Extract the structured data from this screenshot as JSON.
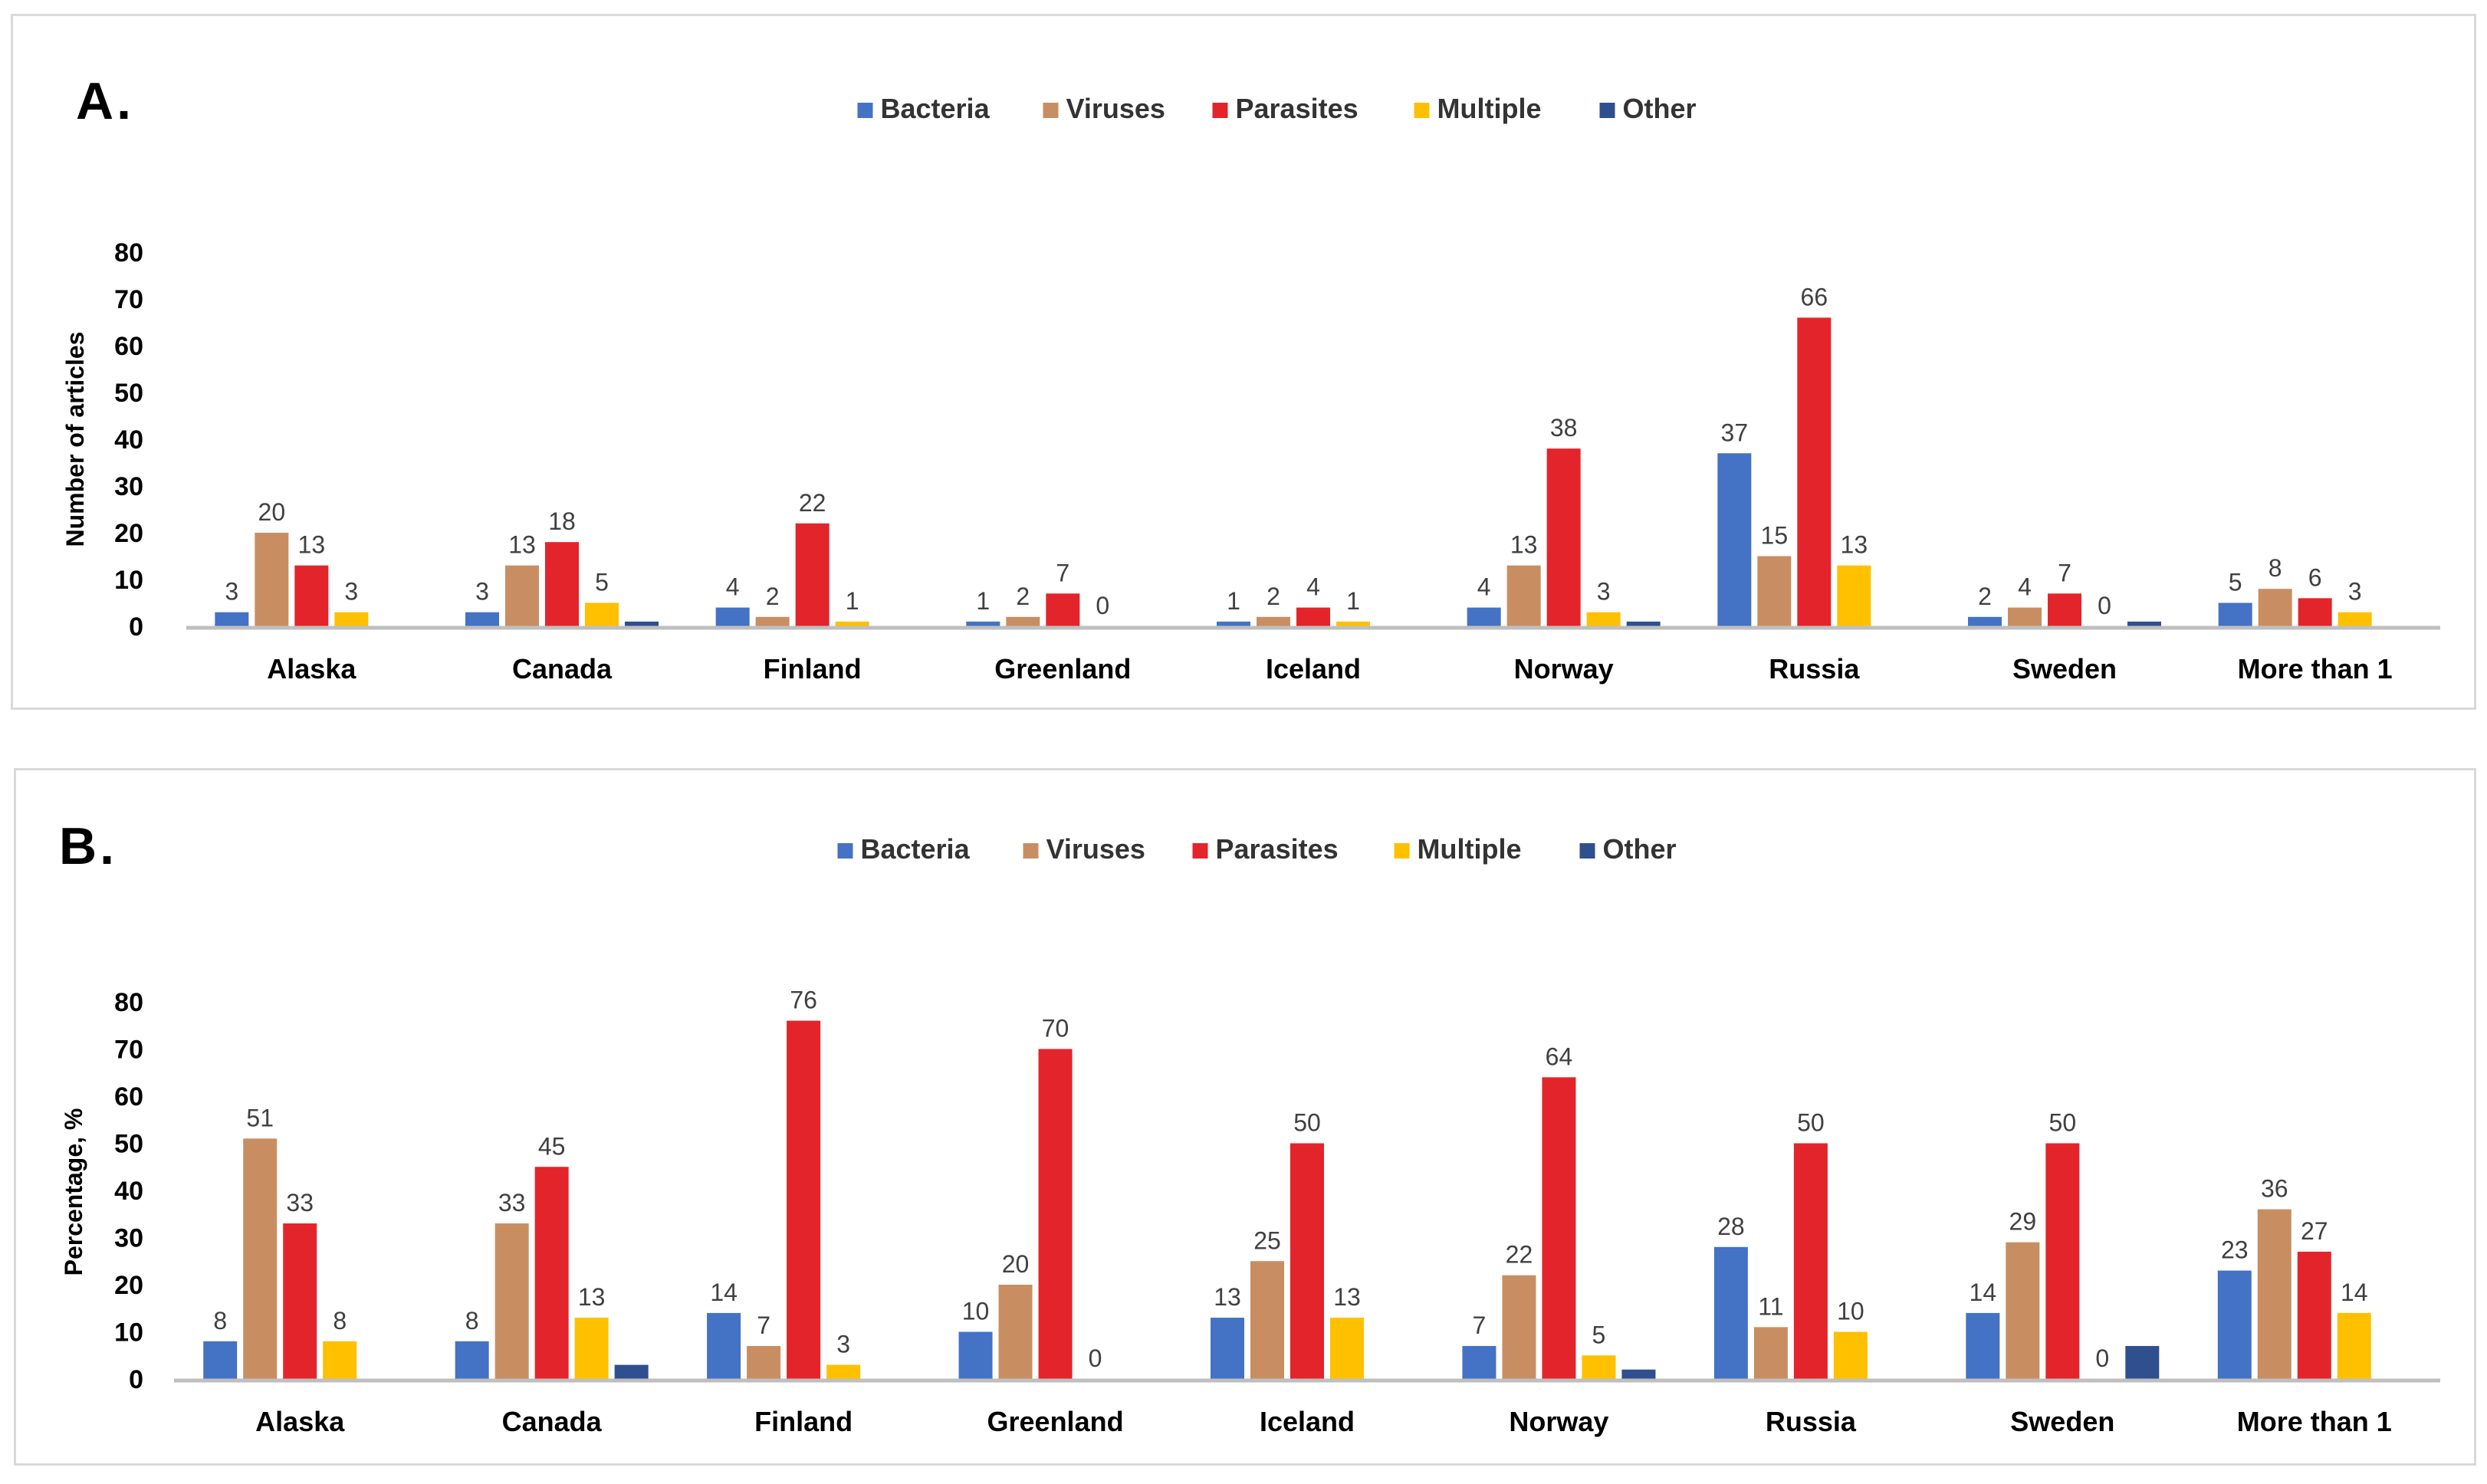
{
  "panels": [
    {
      "letter": "A."
    },
    {
      "letter": "B."
    }
  ],
  "colors": {
    "Bacteria": "#4472c4",
    "Viruses": "#c88e62",
    "Parasites": "#e3242b",
    "Multiple": "#ffc000",
    "Other": "#2f4f8f",
    "axis": "#bfbfbf"
  },
  "chart_data": [
    {
      "type": "bar",
      "title": "A.",
      "xlabel": "",
      "ylabel": "Number of articles",
      "ylim": [
        0,
        80
      ],
      "yticks": [
        0,
        10,
        20,
        30,
        40,
        50,
        60,
        70,
        80
      ],
      "legend_position": "top-center",
      "grid": false,
      "categories": [
        "Alaska",
        "Canada",
        "Finland",
        "Greenland",
        "Iceland",
        "Norway",
        "Russia",
        "Sweden",
        "More than 1"
      ],
      "series": [
        {
          "name": "Bacteria",
          "values": [
            3,
            3,
            4,
            1,
            1,
            4,
            37,
            2,
            5
          ],
          "labels": [
            "3",
            "3",
            "4",
            "1",
            "1",
            "4",
            "37",
            "2",
            "5"
          ]
        },
        {
          "name": "Viruses",
          "values": [
            20,
            13,
            2,
            2,
            2,
            13,
            15,
            4,
            8
          ],
          "labels": [
            "20",
            "13",
            "2",
            "2",
            "2",
            "13",
            "15",
            "4",
            "8"
          ]
        },
        {
          "name": "Parasites",
          "values": [
            13,
            18,
            22,
            7,
            4,
            38,
            66,
            7,
            6
          ],
          "labels": [
            "13",
            "18",
            "22",
            "7",
            "4",
            "38",
            "66",
            "7",
            "6"
          ]
        },
        {
          "name": "Multiple",
          "values": [
            3,
            5,
            1,
            0,
            1,
            3,
            13,
            0,
            3
          ],
          "labels": [
            "3",
            "5",
            "1",
            "0",
            "1",
            "3",
            "13",
            "0",
            "3"
          ]
        },
        {
          "name": "Other",
          "values": [
            0,
            1,
            0,
            0,
            0,
            1,
            0,
            1,
            0
          ],
          "labels": [
            "",
            "",
            "",
            "",
            "",
            "",
            "",
            "",
            ""
          ]
        }
      ]
    },
    {
      "type": "bar",
      "title": "B.",
      "xlabel": "",
      "ylabel": "Percentage, %",
      "ylim": [
        0,
        80
      ],
      "yticks": [
        0,
        10,
        20,
        30,
        40,
        50,
        60,
        70,
        80
      ],
      "legend_position": "top-center",
      "grid": false,
      "categories": [
        "Alaska",
        "Canada",
        "Finland",
        "Greenland",
        "Iceland",
        "Norway",
        "Russia",
        "Sweden",
        "More than 1"
      ],
      "series": [
        {
          "name": "Bacteria",
          "values": [
            8,
            8,
            14,
            10,
            13,
            7,
            28,
            14,
            23
          ],
          "labels": [
            "8",
            "8",
            "14",
            "10",
            "13",
            "7",
            "28",
            "14",
            "23"
          ]
        },
        {
          "name": "Viruses",
          "values": [
            51,
            33,
            7,
            20,
            25,
            22,
            11,
            29,
            36
          ],
          "labels": [
            "51",
            "33",
            "7",
            "20",
            "25",
            "22",
            "11",
            "29",
            "36"
          ]
        },
        {
          "name": "Parasites",
          "values": [
            33,
            45,
            76,
            70,
            50,
            64,
            50,
            50,
            27
          ],
          "labels": [
            "33",
            "45",
            "76",
            "70",
            "50",
            "64",
            "50",
            "50",
            "27"
          ]
        },
        {
          "name": "Multiple",
          "values": [
            8,
            13,
            3,
            0,
            13,
            5,
            10,
            0,
            14
          ],
          "labels": [
            "8",
            "13",
            "3",
            "0",
            "13",
            "5",
            "10",
            "0",
            "14"
          ]
        },
        {
          "name": "Other",
          "values": [
            0,
            3,
            0,
            0,
            0,
            2,
            0,
            7,
            0
          ],
          "labels": [
            "",
            "",
            "",
            "",
            "",
            "",
            "",
            "",
            ""
          ]
        }
      ]
    }
  ]
}
